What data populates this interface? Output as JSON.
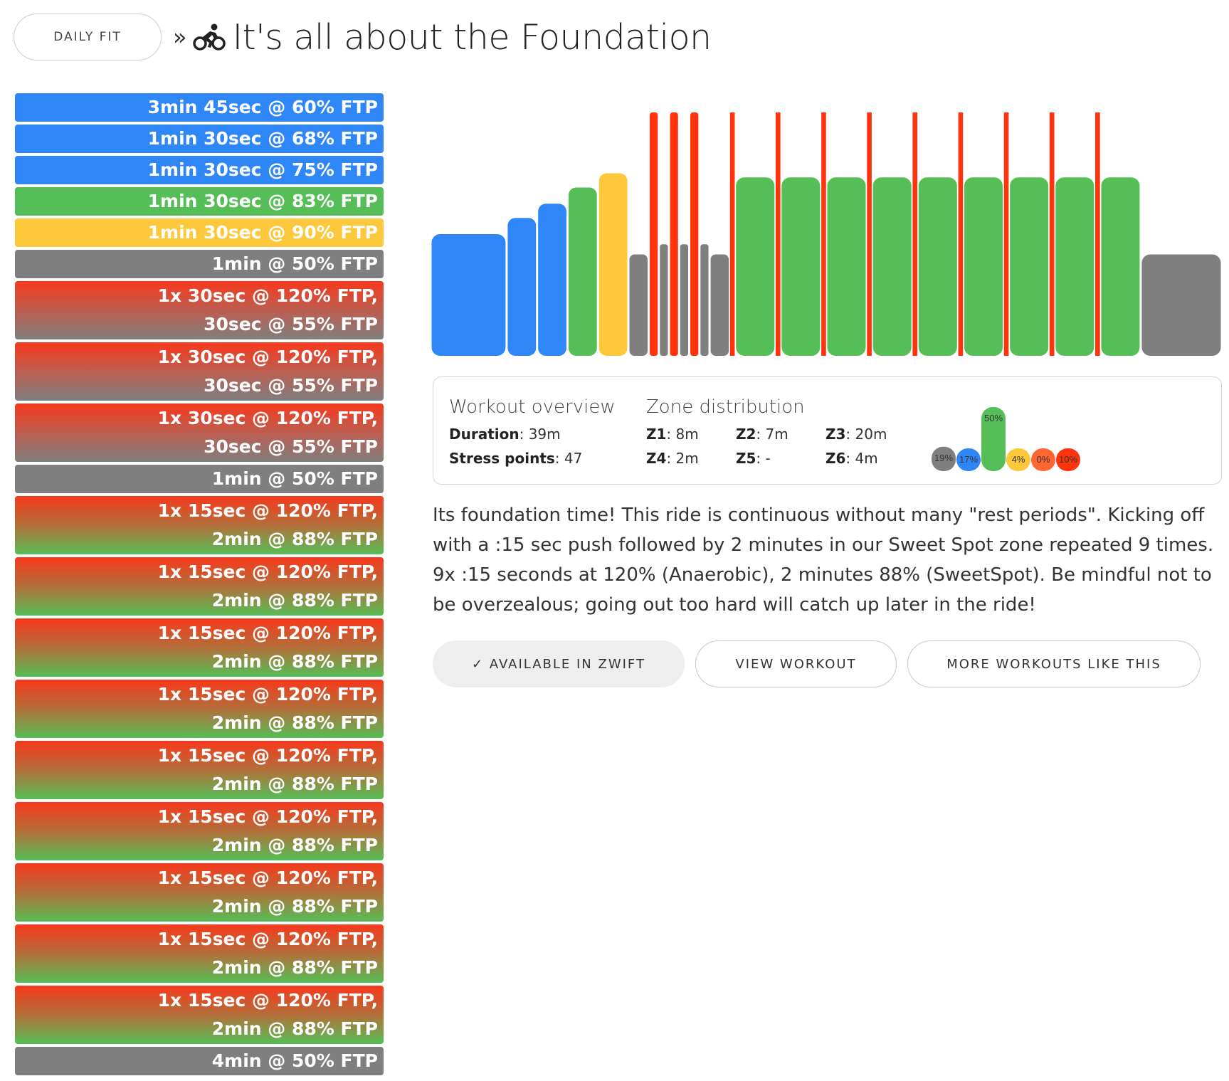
{
  "header": {
    "category_button": "DAILY FIT",
    "separator": "»",
    "bike_icon": "cyclist-icon",
    "title": "It's all about the Foundation"
  },
  "intervals": [
    {
      "lines": [
        "3min 45sec @ 60% FTP"
      ],
      "style": "blue"
    },
    {
      "lines": [
        "1min 30sec @ 68% FTP"
      ],
      "style": "blue"
    },
    {
      "lines": [
        "1min 30sec @ 75% FTP"
      ],
      "style": "blue"
    },
    {
      "lines": [
        "1min 30sec @ 83% FTP"
      ],
      "style": "green"
    },
    {
      "lines": [
        "1min 30sec @ 90% FTP"
      ],
      "style": "yellow"
    },
    {
      "lines": [
        "1min @ 50% FTP"
      ],
      "style": "gray"
    },
    {
      "lines": [
        "1x 30sec @ 120% FTP,",
        "30sec @ 55% FTP"
      ],
      "style": "redgray"
    },
    {
      "lines": [
        "1x 30sec @ 120% FTP,",
        "30sec @ 55% FTP"
      ],
      "style": "redgray"
    },
    {
      "lines": [
        "1x 30sec @ 120% FTP,",
        "30sec @ 55% FTP"
      ],
      "style": "redgray"
    },
    {
      "lines": [
        "1min @ 50% FTP"
      ],
      "style": "gray"
    },
    {
      "lines": [
        "1x 15sec @ 120% FTP,",
        "2min @ 88% FTP"
      ],
      "style": "redgreen"
    },
    {
      "lines": [
        "1x 15sec @ 120% FTP,",
        "2min @ 88% FTP"
      ],
      "style": "redgreen"
    },
    {
      "lines": [
        "1x 15sec @ 120% FTP,",
        "2min @ 88% FTP"
      ],
      "style": "redgreen"
    },
    {
      "lines": [
        "1x 15sec @ 120% FTP,",
        "2min @ 88% FTP"
      ],
      "style": "redgreen"
    },
    {
      "lines": [
        "1x 15sec @ 120% FTP,",
        "2min @ 88% FTP"
      ],
      "style": "redgreen"
    },
    {
      "lines": [
        "1x 15sec @ 120% FTP,",
        "2min @ 88% FTP"
      ],
      "style": "redgreen"
    },
    {
      "lines": [
        "1x 15sec @ 120% FTP,",
        "2min @ 88% FTP"
      ],
      "style": "redgreen"
    },
    {
      "lines": [
        "1x 15sec @ 120% FTP,",
        "2min @ 88% FTP"
      ],
      "style": "redgreen"
    },
    {
      "lines": [
        "1x 15sec @ 120% FTP,",
        "2min @ 88% FTP"
      ],
      "style": "redgreen"
    },
    {
      "lines": [
        "4min @ 50% FTP"
      ],
      "style": "gray"
    }
  ],
  "zone_colors": {
    "Z1": "#7f7f7f",
    "Z2": "#2f87f7",
    "Z3": "#56be56",
    "Z4": "#fec83d",
    "Z5": "#ff6633",
    "Z6": "#ff330c"
  },
  "overview": {
    "title": "Workout overview",
    "duration_label": "Duration",
    "duration_value": "39m",
    "stress_label": "Stress points",
    "stress_value": "47"
  },
  "zones": {
    "title": "Zone distribution",
    "items": [
      {
        "label": "Z1",
        "value": "8m"
      },
      {
        "label": "Z2",
        "value": "7m"
      },
      {
        "label": "Z3",
        "value": "20m"
      },
      {
        "label": "Z4",
        "value": "2m"
      },
      {
        "label": "Z5",
        "value": "-"
      },
      {
        "label": "Z6",
        "value": "4m"
      }
    ],
    "percents": [
      {
        "zone": "Z1",
        "pct": 19,
        "label": "19%"
      },
      {
        "zone": "Z2",
        "pct": 17,
        "label": "17%"
      },
      {
        "zone": "Z3",
        "pct": 50,
        "label": "50%"
      },
      {
        "zone": "Z4",
        "pct": 4,
        "label": "4%"
      },
      {
        "zone": "Z5",
        "pct": 0,
        "label": "0%"
      },
      {
        "zone": "Z6",
        "pct": 10,
        "label": "10%"
      }
    ]
  },
  "description": "Its foundation time! This ride is continuous without many \"rest periods\". Kicking off with a :15 sec push followed by 2 minutes in our Sweet Spot zone repeated 9 times. 9x :15 seconds at 120% (Anaerobic), 2 minutes 88% (SweetSpot). Be mindful not to be overzealous; going out too hard will catch up later in the ride!",
  "buttons": {
    "zwift": "✓ AVAILABLE IN ZWIFT",
    "view": "VIEW WORKOUT",
    "more": "MORE WORKOUTS LIKE THIS"
  }
}
